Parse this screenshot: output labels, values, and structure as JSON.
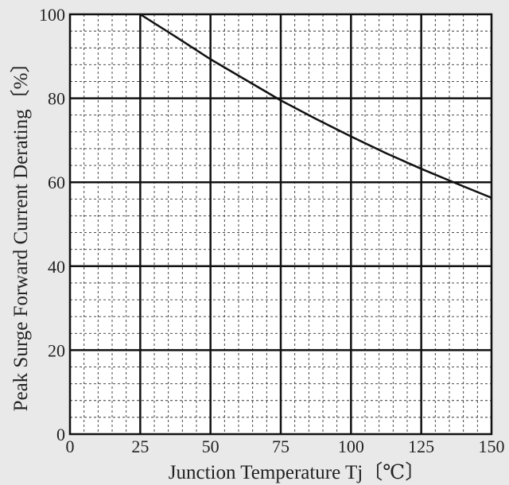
{
  "chart_data": {
    "type": "line",
    "title": "",
    "xlabel": "Junction Temperature  Tj〔℃〕",
    "ylabel": "Peak Surge Forward Current Derating〔%〕",
    "xlim": [
      0,
      150
    ],
    "ylim": [
      0,
      100
    ],
    "xticks": [
      "0",
      "25",
      "50",
      "75",
      "100",
      "125",
      "150"
    ],
    "yticks": [
      "0",
      "20",
      "40",
      "60",
      "80",
      "100"
    ],
    "grid": true,
    "series": [
      {
        "x": [
          25,
          37.5,
          50,
          62.5,
          75,
          87.5,
          100,
          112.5,
          125,
          137.5,
          150
        ],
        "y": [
          100,
          94.7,
          89.3,
          84.4,
          79.5,
          75.1,
          70.9,
          66.9,
          63.2,
          59.7,
          56.3
        ]
      }
    ],
    "colors": {
      "line": "#111111",
      "major_grid": "#111111",
      "minor_grid": "#333333",
      "background": "#e9e9e9",
      "plot_background": "#ffffff"
    }
  }
}
